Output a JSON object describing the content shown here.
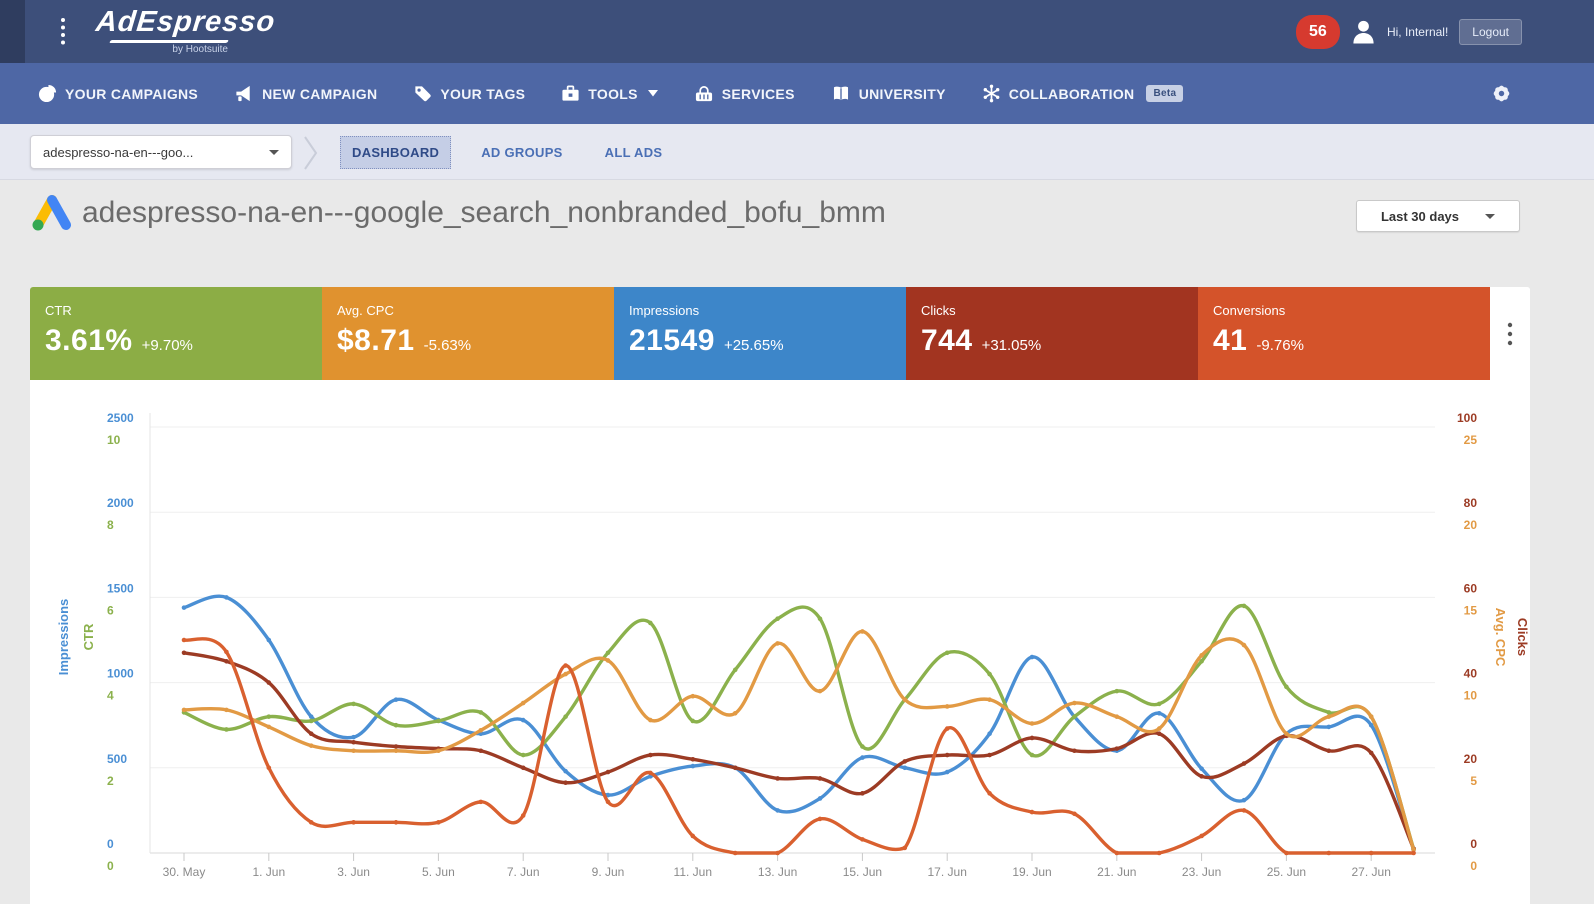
{
  "colors": {
    "topbar_bg": "#3d4f7a",
    "topbar_edge": "#2f3d5f",
    "navbar_bg": "#4e67a5",
    "badge_red": "#d63a2f",
    "crumb_bg": "#e6e8f1",
    "tab_active_bg": "#c5cee6",
    "page_bg": "#e9e9e9",
    "card_bg": "#ffffff"
  },
  "topbar": {
    "brand": "AdEspresso",
    "brand_sub": "by Hootsuite",
    "notification_count": "56",
    "greeting": "Hi, Internal!",
    "logout": "Logout"
  },
  "nav": {
    "items": [
      {
        "id": "your-campaigns",
        "label": "YOUR CAMPAIGNS",
        "icon": "pie-chart-icon"
      },
      {
        "id": "new-campaign",
        "label": "NEW CAMPAIGN",
        "icon": "megaphone-icon"
      },
      {
        "id": "your-tags",
        "label": "YOUR TAGS",
        "icon": "tag-icon"
      },
      {
        "id": "tools",
        "label": "TOOLS",
        "icon": "toolbox-icon",
        "caret": true
      },
      {
        "id": "services",
        "label": "SERVICES",
        "icon": "basket-icon"
      },
      {
        "id": "university",
        "label": "UNIVERSITY",
        "icon": "book-icon"
      },
      {
        "id": "collaboration",
        "label": "COLLABORATION",
        "icon": "collab-icon",
        "badge": "Beta"
      }
    ]
  },
  "breadcrumb": {
    "selector_value": "adespresso-na-en---goo...",
    "tabs": [
      "DASHBOARD",
      "AD GROUPS",
      "ALL ADS"
    ],
    "active_tab": "DASHBOARD"
  },
  "page": {
    "title": "adespresso-na-en---google_search_nonbranded_bofu_bmm",
    "date_range": "Last 30 days"
  },
  "metrics": [
    {
      "label": "CTR",
      "value": "3.61%",
      "delta": "+9.70%",
      "color": "#8cad45"
    },
    {
      "label": "Avg. CPC",
      "value": "$8.71",
      "delta": "-5.63%",
      "color": "#e0922f"
    },
    {
      "label": "Impressions",
      "value": "21549",
      "delta": "+25.65%",
      "color": "#3d86c9"
    },
    {
      "label": "Clicks",
      "value": "744",
      "delta": "+31.05%",
      "color": "#a23420"
    },
    {
      "label": "Conversions",
      "value": "41",
      "delta": "-9.76%",
      "color": "#d4532a"
    }
  ],
  "chart_data": {
    "type": "line",
    "grid": true,
    "legend_position": "none",
    "x": [
      "30. May",
      "31. May",
      "1. Jun",
      "2. Jun",
      "3. Jun",
      "4. Jun",
      "5. Jun",
      "6. Jun",
      "7. Jun",
      "8. Jun",
      "9. Jun",
      "10. Jun",
      "11. Jun",
      "12. Jun",
      "13. Jun",
      "14. Jun",
      "15. Jun",
      "16. Jun",
      "17. Jun",
      "18. Jun",
      "19. Jun",
      "20. Jun",
      "21. Jun",
      "22. Jun",
      "23. Jun",
      "24. Jun",
      "25. Jun",
      "26. Jun",
      "27. Jun",
      "28. Jun"
    ],
    "x_tick_labels": [
      "30. May",
      "1. Jun",
      "3. Jun",
      "5. Jun",
      "7. Jun",
      "9. Jun",
      "11. Jun",
      "13. Jun",
      "15. Jun",
      "17. Jun",
      "19. Jun",
      "21. Jun",
      "23. Jun",
      "25. Jun",
      "27. Jun"
    ],
    "axes": {
      "left_primary": {
        "title": "Impressions",
        "color": "#4a8fd4",
        "range": [
          0,
          2500
        ],
        "ticks": [
          "2500",
          "2000",
          "1500",
          "1000",
          "500",
          "0"
        ]
      },
      "left_secondary": {
        "title": "CTR",
        "color": "#8bb14c",
        "range": [
          0,
          10
        ],
        "ticks": [
          "10",
          "8",
          "6",
          "4",
          "2",
          "0"
        ]
      },
      "right_primary": {
        "title": "Clicks",
        "color": "#9c3b24",
        "range": [
          0,
          100
        ],
        "ticks": [
          "100",
          "80",
          "60",
          "40",
          "20",
          "0"
        ]
      },
      "right_secondary": {
        "title": "Avg. CPC",
        "color": "#e29a44",
        "range": [
          0,
          25
        ],
        "ticks": [
          "25",
          "20",
          "15",
          "10",
          "5",
          "0"
        ]
      }
    },
    "series": [
      {
        "name": "Impressions",
        "color": "#4a8fd4",
        "axis_max": 2500,
        "values": [
          1440,
          1500,
          1250,
          800,
          680,
          900,
          780,
          700,
          780,
          480,
          340,
          450,
          510,
          500,
          250,
          320,
          560,
          500,
          475,
          700,
          1150,
          800,
          600,
          820,
          495,
          310,
          700,
          740,
          750,
          20
        ]
      },
      {
        "name": "CTR",
        "color": "#8bb14c",
        "axis_max": 10,
        "values": [
          3.3,
          2.9,
          3.2,
          3.1,
          3.5,
          3.0,
          3.1,
          3.3,
          2.3,
          3.2,
          4.7,
          5.4,
          3.1,
          4.3,
          5.5,
          5.5,
          2.5,
          3.6,
          4.7,
          4.2,
          2.3,
          3.2,
          3.8,
          3.5,
          4.5,
          5.8,
          3.9,
          3.3,
          3.2,
          0.1
        ]
      },
      {
        "name": "Clicks",
        "color": "#9c3b24",
        "axis_max": 100,
        "values": [
          47,
          45,
          40,
          28,
          26,
          25,
          24.5,
          24,
          20,
          16.5,
          19,
          23,
          22,
          20,
          17.5,
          17.5,
          14,
          21.5,
          23,
          23,
          27,
          24,
          24.5,
          28,
          18,
          21,
          27.5,
          24,
          23.5,
          1
        ]
      },
      {
        "name": "Avg. CPC",
        "color": "#e29a44",
        "axis_max": 25,
        "values": [
          8.4,
          8.4,
          7.4,
          6.3,
          6.0,
          6.0,
          6.0,
          7.2,
          8.8,
          10.5,
          11.3,
          7.8,
          9.2,
          8.2,
          12.3,
          9.5,
          13.0,
          9.0,
          8.6,
          9.0,
          7.6,
          8.8,
          8.0,
          7.3,
          11.6,
          12.2,
          7.0,
          8.0,
          8.0,
          0.2
        ]
      },
      {
        "name": "Conversions",
        "color": "#d9602f",
        "axis_max": 25,
        "note": "plotted on hidden scale",
        "values": [
          12.5,
          11.8,
          5.0,
          1.8,
          1.8,
          1.8,
          1.8,
          3.0,
          2.2,
          11.0,
          3.0,
          4.7,
          1.0,
          0,
          0,
          2.0,
          0.8,
          0.3,
          7.3,
          3.5,
          2.4,
          2.3,
          0,
          0,
          1.0,
          2.5,
          0,
          0,
          0,
          0
        ]
      }
    ]
  }
}
